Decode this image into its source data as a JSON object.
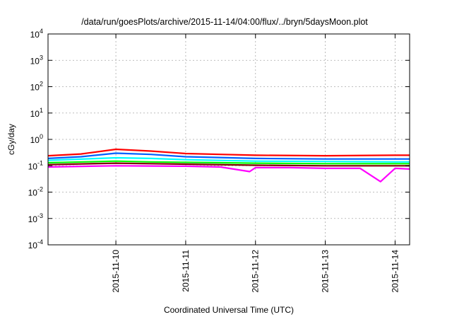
{
  "chart_data": {
    "type": "line",
    "title": "/data/run/goesPlots/archive/2015-11-14/04:00/flux/../bryn/5daysMoon.plot",
    "xlabel": "Coordinated Universal Time (UTC)",
    "ylabel": "cGy/day",
    "yscale": "log",
    "ylim": [
      "1e-4",
      "1e4"
    ],
    "xlim": [
      "2015-11-09T00:40",
      "2015-11-14T05:00"
    ],
    "grid": true,
    "y_ticks": [
      {
        "base": "10",
        "exp": "-4"
      },
      {
        "base": "10",
        "exp": "-3"
      },
      {
        "base": "10",
        "exp": "-2"
      },
      {
        "base": "10",
        "exp": "-1"
      },
      {
        "base": "10",
        "exp": "0"
      },
      {
        "base": "10",
        "exp": "1"
      },
      {
        "base": "10",
        "exp": "2"
      },
      {
        "base": "10",
        "exp": "3"
      },
      {
        "base": "10",
        "exp": "4"
      }
    ],
    "x_ticks": [
      {
        "label": "2015-11-10",
        "t": "2015-11-10T00:00"
      },
      {
        "label": "2015-11-11",
        "t": "2015-11-11T00:00"
      },
      {
        "label": "2015-11-12",
        "t": "2015-11-12T00:00"
      },
      {
        "label": "2015-11-13",
        "t": "2015-11-13T00:00"
      },
      {
        "label": "2015-11-14",
        "t": "2015-11-14T00:00"
      }
    ],
    "series": [
      {
        "color": "#ff00ff",
        "values": [
          [
            "2015-11-09T00:40",
            0.09
          ],
          [
            "2015-11-09T12:00",
            0.095
          ],
          [
            "2015-11-10T00:00",
            0.1
          ],
          [
            "2015-11-10T12:00",
            0.098
          ],
          [
            "2015-11-11T00:00",
            0.096
          ],
          [
            "2015-11-11T12:00",
            0.09
          ],
          [
            "2015-11-11T22:00",
            0.06
          ],
          [
            "2015-11-12T00:00",
            0.085
          ],
          [
            "2015-11-12T12:00",
            0.085
          ],
          [
            "2015-11-13T00:00",
            0.08
          ],
          [
            "2015-11-13T12:00",
            0.08
          ],
          [
            "2015-11-13T19:00",
            0.025
          ],
          [
            "2015-11-14T00:00",
            0.08
          ],
          [
            "2015-11-14T05:00",
            0.075
          ]
        ]
      },
      {
        "color": "#7f0000",
        "values": [
          [
            "2015-11-09T00:40",
            0.11
          ],
          [
            "2015-11-10T00:00",
            0.125
          ],
          [
            "2015-11-10T12:00",
            0.12
          ],
          [
            "2015-11-11T00:00",
            0.115
          ],
          [
            "2015-11-12T00:00",
            0.105
          ],
          [
            "2015-11-13T00:00",
            0.1
          ],
          [
            "2015-11-14T00:00",
            0.1
          ],
          [
            "2015-11-14T05:00",
            0.1
          ]
        ]
      },
      {
        "color": "#00ff00",
        "values": [
          [
            "2015-11-09T00:40",
            0.13
          ],
          [
            "2015-11-10T00:00",
            0.15
          ],
          [
            "2015-11-10T12:00",
            0.14
          ],
          [
            "2015-11-11T00:00",
            0.135
          ],
          [
            "2015-11-12T00:00",
            0.125
          ],
          [
            "2015-11-13T00:00",
            0.12
          ],
          [
            "2015-11-14T00:00",
            0.12
          ],
          [
            "2015-11-14T05:00",
            0.12
          ]
        ]
      },
      {
        "color": "#00ffff",
        "values": [
          [
            "2015-11-09T00:40",
            0.16
          ],
          [
            "2015-11-10T00:00",
            0.2
          ],
          [
            "2015-11-10T12:00",
            0.19
          ],
          [
            "2015-11-11T00:00",
            0.17
          ],
          [
            "2015-11-12T00:00",
            0.15
          ],
          [
            "2015-11-13T00:00",
            0.145
          ],
          [
            "2015-11-14T00:00",
            0.14
          ],
          [
            "2015-11-14T05:00",
            0.14
          ]
        ]
      },
      {
        "color": "#0060ff",
        "values": [
          [
            "2015-11-09T00:40",
            0.19
          ],
          [
            "2015-11-09T12:00",
            0.22
          ],
          [
            "2015-11-10T00:00",
            0.3
          ],
          [
            "2015-11-10T12:00",
            0.27
          ],
          [
            "2015-11-11T00:00",
            0.22
          ],
          [
            "2015-11-12T00:00",
            0.19
          ],
          [
            "2015-11-13T00:00",
            0.18
          ],
          [
            "2015-11-14T00:00",
            0.18
          ],
          [
            "2015-11-14T05:00",
            0.18
          ]
        ]
      },
      {
        "color": "#ff0000",
        "values": [
          [
            "2015-11-09T00:40",
            0.24
          ],
          [
            "2015-11-09T12:00",
            0.28
          ],
          [
            "2015-11-10T00:00",
            0.42
          ],
          [
            "2015-11-10T12:00",
            0.36
          ],
          [
            "2015-11-11T00:00",
            0.29
          ],
          [
            "2015-11-11T12:00",
            0.27
          ],
          [
            "2015-11-12T00:00",
            0.25
          ],
          [
            "2015-11-13T00:00",
            0.24
          ],
          [
            "2015-11-14T00:00",
            0.25
          ],
          [
            "2015-11-14T05:00",
            0.25
          ]
        ]
      }
    ]
  }
}
